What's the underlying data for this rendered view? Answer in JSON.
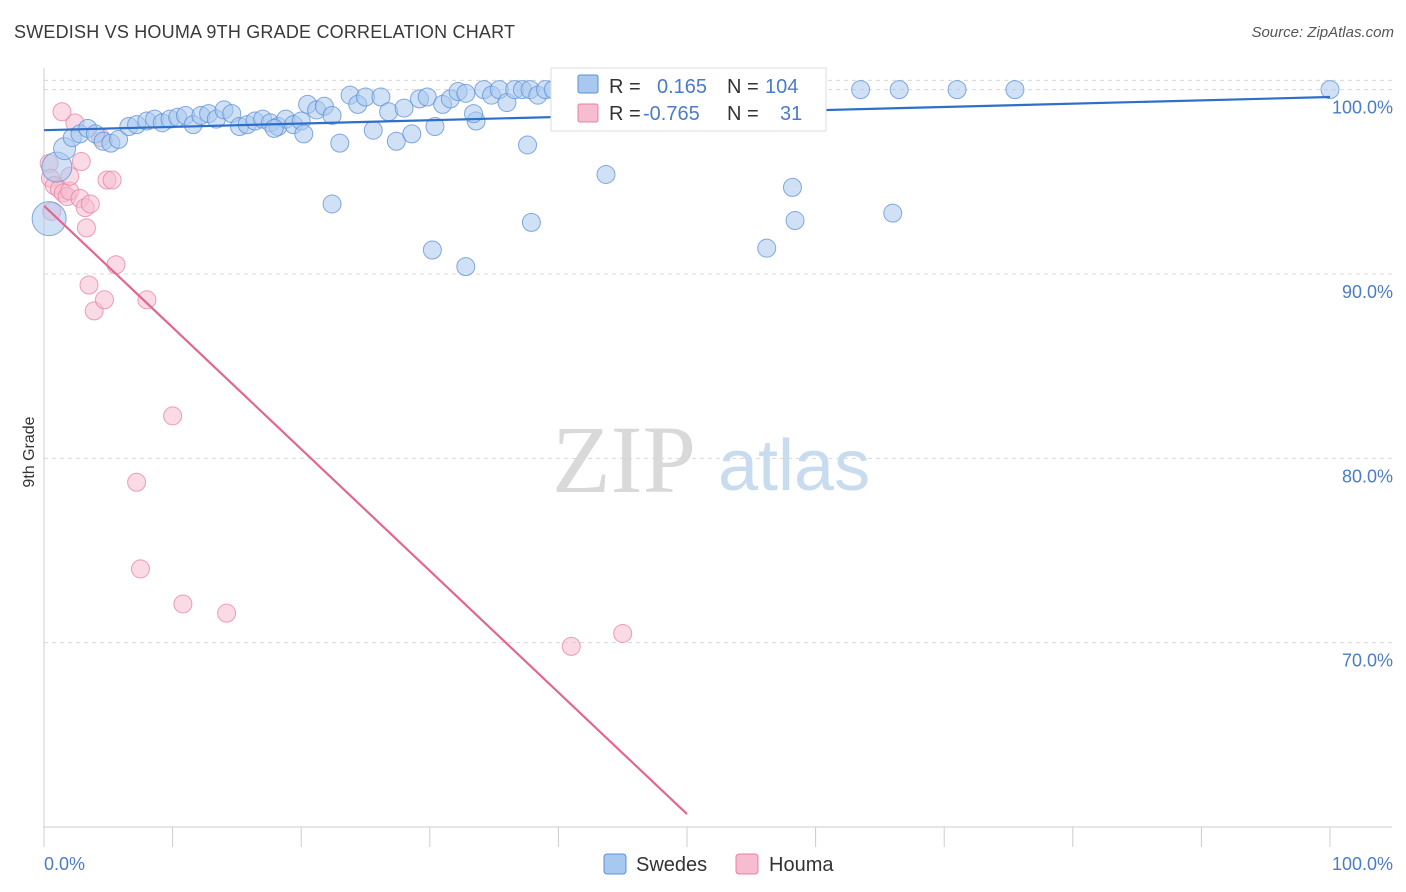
{
  "title": "SWEDISH VS HOUMA 9TH GRADE CORRELATION CHART",
  "source": "Source: ZipAtlas.com",
  "watermark": {
    "zip": "ZIP",
    "atlas": "atlas"
  },
  "colors": {
    "swedes": "#5b8fd6",
    "swedes_fill": "#a9c8ef",
    "swedes_line": "#2e6fc9",
    "houma": "#e87fa3",
    "houma_fill": "#f6bdd0",
    "houma_line": "#e0688f",
    "grid": "#d8d8d8",
    "tick_label": "#4a7cc7"
  },
  "legend": {
    "rows": [
      {
        "r_label": "R =",
        "r_value": "0.165",
        "n_label": "N =",
        "n_value": "104"
      },
      {
        "r_label": "R =",
        "r_value": "-0.765",
        "n_label": "N =",
        "n_value": "31"
      }
    ],
    "bottom": [
      "Swedes",
      "Houma"
    ]
  },
  "chart_data": {
    "type": "scatter",
    "title": "SWEDISH VS HOUMA 9TH GRADE CORRELATION CHART",
    "xlabel": "",
    "ylabel": "9th Grade",
    "xlim": [
      0,
      100
    ],
    "ylim": [
      60,
      101.5
    ],
    "x_tick_labels": [
      "0.0%",
      "100.0%"
    ],
    "y_ticks": [
      70,
      80,
      90,
      100
    ],
    "y_tick_labels": [
      "70.0%",
      "80.0%",
      "90.0%",
      "100.0%"
    ],
    "series": [
      {
        "name": "Swedes",
        "r": 0.165,
        "n": 104,
        "trend": {
          "x0": 0,
          "y0": 97.8,
          "x1": 100,
          "y1": 99.6
        },
        "points": [
          [
            0.4,
            93.0,
            16
          ],
          [
            1.0,
            95.8,
            14
          ],
          [
            1.6,
            96.8,
            10
          ],
          [
            2.2,
            97.4,
            8
          ],
          [
            2.8,
            97.6,
            8
          ],
          [
            3.4,
            97.9,
            8
          ],
          [
            4.0,
            97.6,
            8
          ],
          [
            4.6,
            97.2,
            8
          ],
          [
            5.2,
            97.1,
            8
          ],
          [
            5.8,
            97.3,
            8
          ],
          [
            6.6,
            98.0,
            8
          ],
          [
            7.2,
            98.1,
            8
          ],
          [
            8.0,
            98.3,
            8
          ],
          [
            8.6,
            98.4,
            8
          ],
          [
            9.2,
            98.2,
            8
          ],
          [
            9.8,
            98.4,
            8
          ],
          [
            10.4,
            98.5,
            8
          ],
          [
            11.0,
            98.6,
            8
          ],
          [
            11.6,
            98.1,
            8
          ],
          [
            12.2,
            98.6,
            8
          ],
          [
            12.8,
            98.7,
            8
          ],
          [
            13.4,
            98.4,
            8
          ],
          [
            14.0,
            98.9,
            8
          ],
          [
            14.6,
            98.7,
            8
          ],
          [
            15.2,
            98.0,
            8
          ],
          [
            15.8,
            98.1,
            8
          ],
          [
            16.4,
            98.3,
            8
          ],
          [
            17.0,
            98.4,
            8
          ],
          [
            17.6,
            98.2,
            8
          ],
          [
            18.2,
            98.0,
            8
          ],
          [
            18.8,
            98.4,
            8
          ],
          [
            19.4,
            98.1,
            8
          ],
          [
            20.0,
            98.3,
            8
          ],
          [
            20.5,
            99.2,
            8
          ],
          [
            21.2,
            98.9,
            8
          ],
          [
            21.8,
            99.1,
            8
          ],
          [
            22.4,
            98.6,
            8
          ],
          [
            23.0,
            97.1,
            8
          ],
          [
            23.8,
            99.7,
            8
          ],
          [
            24.4,
            99.2,
            8
          ],
          [
            25.0,
            99.6,
            8
          ],
          [
            25.6,
            97.8,
            8
          ],
          [
            26.2,
            99.6,
            8
          ],
          [
            26.8,
            98.8,
            8
          ],
          [
            27.4,
            97.2,
            8
          ],
          [
            28.0,
            99.0,
            8
          ],
          [
            28.6,
            97.6,
            8
          ],
          [
            29.2,
            99.5,
            8
          ],
          [
            29.8,
            99.6,
            8
          ],
          [
            30.4,
            98.0,
            8
          ],
          [
            31.0,
            99.2,
            8
          ],
          [
            31.6,
            99.5,
            8
          ],
          [
            32.2,
            99.9,
            8
          ],
          [
            32.8,
            99.8,
            8
          ],
          [
            33.6,
            98.3,
            8
          ],
          [
            34.2,
            100.0,
            8
          ],
          [
            34.8,
            99.7,
            8
          ],
          [
            35.4,
            100.0,
            8
          ],
          [
            36.0,
            99.3,
            8
          ],
          [
            36.6,
            100.0,
            8
          ],
          [
            37.2,
            100.0,
            8
          ],
          [
            37.8,
            100.0,
            8
          ],
          [
            38.4,
            99.7,
            8
          ],
          [
            39.0,
            100.0,
            8
          ],
          [
            39.6,
            100.0,
            8
          ],
          [
            40.2,
            100.0,
            8
          ],
          [
            40.8,
            100.0,
            8
          ],
          [
            41.4,
            100.0,
            8
          ],
          [
            42.0,
            100.0,
            8
          ],
          [
            42.6,
            100.0,
            8
          ],
          [
            43.2,
            100.0,
            8
          ],
          [
            43.8,
            100.0,
            8
          ],
          [
            44.4,
            100.0,
            8
          ],
          [
            45.0,
            100.0,
            8
          ],
          [
            45.6,
            100.0,
            8
          ],
          [
            46.2,
            100.0,
            8
          ],
          [
            46.8,
            100.0,
            8
          ],
          [
            47.4,
            100.0,
            8
          ],
          [
            48.0,
            100.0,
            8
          ],
          [
            48.6,
            100.0,
            8
          ],
          [
            49.2,
            100.0,
            8
          ],
          [
            49.8,
            100.0,
            8
          ],
          [
            50.4,
            100.0,
            8
          ],
          [
            51.0,
            100.0,
            8
          ],
          [
            52.2,
            100.0,
            8
          ],
          [
            53.4,
            100.0,
            8
          ],
          [
            54.6,
            100.0,
            8
          ],
          [
            55.8,
            100.0,
            8
          ],
          [
            56.6,
            100.0,
            8
          ],
          [
            58.0,
            100.0,
            8
          ],
          [
            60.0,
            100.0,
            8
          ],
          [
            63.5,
            100.0,
            8
          ],
          [
            66.5,
            100.0,
            8
          ],
          [
            71.0,
            100.0,
            8
          ],
          [
            75.5,
            100.0,
            8
          ],
          [
            100.0,
            100.0,
            8
          ],
          [
            22.4,
            93.8,
            8
          ],
          [
            30.2,
            91.3,
            8
          ],
          [
            32.8,
            90.4,
            8
          ],
          [
            37.6,
            97.0,
            8
          ],
          [
            37.9,
            92.8,
            8
          ],
          [
            43.7,
            95.4,
            8
          ],
          [
            56.2,
            91.4,
            8
          ],
          [
            58.2,
            94.7,
            8
          ],
          [
            58.4,
            92.9,
            8
          ],
          [
            66.0,
            93.3,
            8
          ],
          [
            17.9,
            97.9,
            8
          ],
          [
            33.4,
            98.7,
            8
          ],
          [
            20.2,
            97.6,
            8
          ]
        ]
      },
      {
        "name": "Houma",
        "r": -0.765,
        "n": 31,
        "trend": {
          "x0": 0,
          "y0": 93.7,
          "x1": 50,
          "y1": 60.7
        },
        "points": [
          [
            0.4,
            96.0,
            8
          ],
          [
            0.5,
            95.2,
            8
          ],
          [
            0.6,
            93.4,
            8
          ],
          [
            0.8,
            94.8,
            8
          ],
          [
            1.2,
            94.6,
            8
          ],
          [
            1.5,
            94.4,
            8
          ],
          [
            1.8,
            94.2,
            8
          ],
          [
            2.0,
            94.5,
            8
          ],
          [
            2.4,
            98.2,
            8
          ],
          [
            1.4,
            98.8,
            8
          ],
          [
            2.8,
            94.1,
            8
          ],
          [
            2.9,
            96.1,
            8
          ],
          [
            3.2,
            93.6,
            8
          ],
          [
            3.3,
            92.5,
            8
          ],
          [
            3.6,
            93.8,
            8
          ],
          [
            2.0,
            95.3,
            8
          ],
          [
            4.4,
            97.4,
            8
          ],
          [
            4.9,
            95.1,
            8
          ],
          [
            5.3,
            95.1,
            8
          ],
          [
            5.6,
            90.5,
            8
          ],
          [
            3.5,
            89.4,
            8
          ],
          [
            3.9,
            88.0,
            8
          ],
          [
            4.7,
            88.6,
            8
          ],
          [
            8.0,
            88.6,
            8
          ],
          [
            10.0,
            82.3,
            8
          ],
          [
            7.2,
            78.7,
            8
          ],
          [
            7.5,
            74.0,
            8
          ],
          [
            10.8,
            72.1,
            8
          ],
          [
            14.2,
            71.6,
            8
          ],
          [
            41.0,
            69.8,
            8
          ],
          [
            45.0,
            70.5,
            8
          ]
        ]
      }
    ]
  }
}
